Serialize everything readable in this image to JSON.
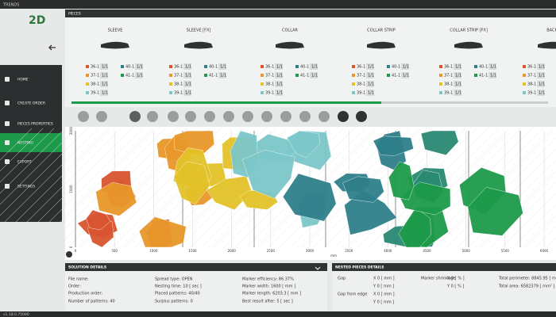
{
  "app": {
    "title": "TRENDS",
    "logo": "2D",
    "version": "v1.18.0.75000"
  },
  "sidebar": {
    "items": [
      "HOME",
      "CREATE ORDER",
      "PIECES PROPERTIES",
      "NESTING",
      "EXPORT",
      "SETTINGS"
    ],
    "active": "NESTING"
  },
  "pieces": {
    "title": "PIECES",
    "columns": [
      {
        "name": "SLEEVE",
        "sizes": [
          {
            "size": "36-1",
            "count": "1/1"
          },
          {
            "size": "37-1",
            "count": "1/1"
          },
          {
            "size": "38-1",
            "count": "1/1"
          },
          {
            "size": "39-1",
            "count": "1/1"
          }
        ],
        "more_sizes": [
          {
            "size": "40-1",
            "count": "1/1"
          },
          {
            "size": "41-1",
            "count": "1/1"
          }
        ]
      },
      {
        "name": "SLEEVE [FX]",
        "sizes": [
          {
            "size": "36-1",
            "count": "1/1"
          },
          {
            "size": "37-1",
            "count": "1/1"
          },
          {
            "size": "38-1",
            "count": "1/1"
          },
          {
            "size": "39-1",
            "count": "1/1"
          }
        ],
        "more_sizes": [
          {
            "size": "40-1",
            "count": "1/1"
          },
          {
            "size": "41-1",
            "count": "1/1"
          }
        ]
      },
      {
        "name": "COLLAR",
        "sizes": [
          {
            "size": "36-1",
            "count": "1/1"
          },
          {
            "size": "37-1",
            "count": "1/1"
          },
          {
            "size": "38-1",
            "count": "1/1"
          },
          {
            "size": "39-1",
            "count": "1/1"
          }
        ],
        "more_sizes": [
          {
            "size": "40-1",
            "count": "1/1"
          },
          {
            "size": "41-1",
            "count": "1/1"
          }
        ]
      },
      {
        "name": "COLLAR STRIP",
        "sizes": [
          {
            "size": "36-1",
            "count": "1/1"
          },
          {
            "size": "37-1",
            "count": "1/1"
          },
          {
            "size": "38-1",
            "count": "1/1"
          },
          {
            "size": "39-1",
            "count": "1/1"
          }
        ],
        "more_sizes": [
          {
            "size": "40-1",
            "count": "1/1"
          },
          {
            "size": "41-1",
            "count": "1/1"
          }
        ]
      },
      {
        "name": "COLLAR STRIP [FX]",
        "sizes": [
          {
            "size": "36-1",
            "count": "1/1"
          },
          {
            "size": "37-1",
            "count": "1/1"
          },
          {
            "size": "38-1",
            "count": "1/1"
          },
          {
            "size": "39-1",
            "count": "1/1"
          }
        ],
        "more_sizes": [
          {
            "size": "40-1",
            "count": "1/1"
          },
          {
            "size": "41-1",
            "count": "1/1"
          }
        ]
      },
      {
        "name": "BACK",
        "sizes": [
          {
            "size": "36-1",
            "count": "1/1"
          },
          {
            "size": "37-1",
            "count": "1/1"
          },
          {
            "size": "38-1",
            "count": "1/1"
          },
          {
            "size": "39-1",
            "count": "1/1"
          }
        ],
        "more_sizes": []
      }
    ]
  },
  "marker": {
    "x_ticks": [
      "0",
      "500",
      "1000",
      "1500",
      "2000",
      "2500",
      "3000",
      "3500",
      "4000",
      "4500",
      "5000",
      "5500",
      "6000"
    ],
    "y_ticks": [
      "2000",
      "1000",
      "0"
    ],
    "unit": "mm"
  },
  "solution_details": {
    "title": "SOLUTION DETAILS",
    "columns": [
      [
        "File name:",
        "Order:",
        "Production order:",
        "Number of patterns: 40"
      ],
      [
        "Spread type: OPEN",
        "Nesting time: 10 [ sec ]",
        "Placed patterns: 40/40",
        "Surplus patterns: 0"
      ],
      [
        "Marker efficiency: 86.37%",
        "Marker width: 1600 [ mm ]",
        "Marker length: 6203.3 [ mm ]",
        "Best result after: 5 [ sec ]"
      ]
    ]
  },
  "nested_details": {
    "title": "NESTED PIECES DETAILS",
    "groups": [
      {
        "label": "Gap",
        "rows": [
          "X   0   [ mm ]",
          "Y   0   [ mm ]"
        ]
      },
      {
        "label": "Gap from edge",
        "rows": [
          "X   0   [ mm ]",
          "Y   0   [ mm ]"
        ]
      },
      {
        "label": "Marker shrinkage",
        "rows": [
          "X   0   [ % ]",
          "Y   0   [ % ]"
        ]
      }
    ],
    "totals": [
      "Total perimeter:  8845.95  [ mm ]",
      "Total area:  6582379  [ mm² ]"
    ]
  }
}
